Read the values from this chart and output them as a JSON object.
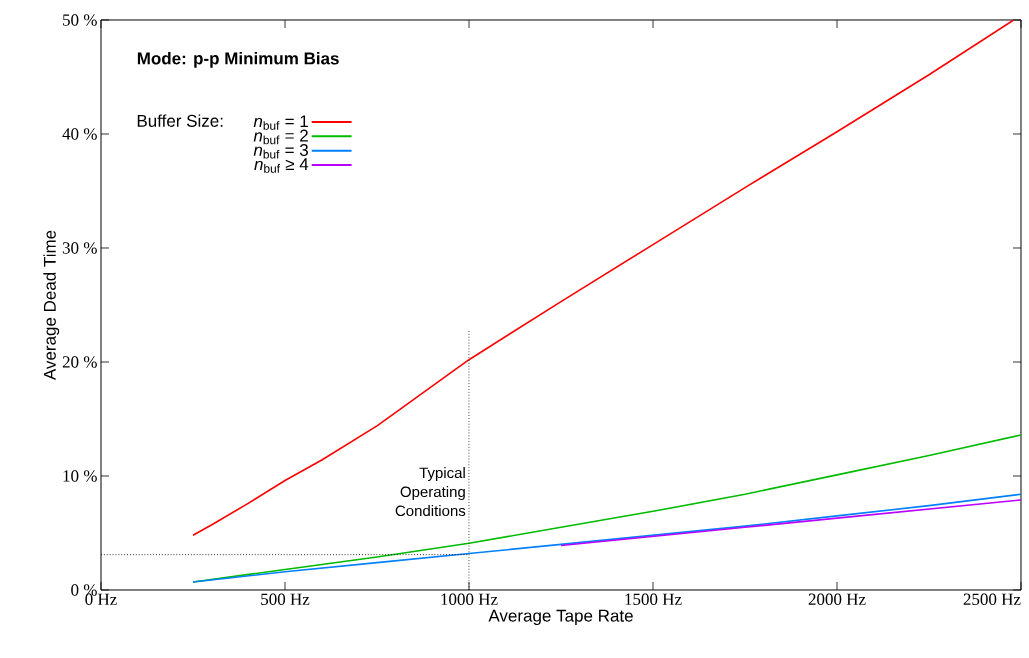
{
  "chart_data": {
    "type": "line",
    "title": "Mode: p-p Minimum Bias",
    "xlabel": "Average Tape Rate",
    "ylabel": "Average Dead Time",
    "legend_title": "Buffer Size:",
    "xlim": [
      0,
      2500
    ],
    "ylim": [
      0,
      50
    ],
    "xticks": [
      {
        "value": 0,
        "label": "0 Hz"
      },
      {
        "value": 500,
        "label": "500 Hz"
      },
      {
        "value": 1000,
        "label": "1000 Hz"
      },
      {
        "value": 1500,
        "label": "1500 Hz"
      },
      {
        "value": 2000,
        "label": "2000 Hz"
      },
      {
        "value": 2500,
        "label": "2500 Hz"
      }
    ],
    "yticks": [
      {
        "value": 0,
        "label": "0 %"
      },
      {
        "value": 10,
        "label": "10 %"
      },
      {
        "value": 20,
        "label": "20 %"
      },
      {
        "value": 30,
        "label": "30 %"
      },
      {
        "value": 40,
        "label": "40 %"
      },
      {
        "value": 50,
        "label": "50 %"
      }
    ],
    "x": [
      250,
      300,
      400,
      500,
      600,
      750,
      1000,
      1250,
      1500,
      1750,
      2000,
      2250,
      2480
    ],
    "series": [
      {
        "name": "*n*$_{buf}$ = 1",
        "color": "#ff0000",
        "values": [
          4.8,
          5.7,
          7.6,
          9.6,
          11.4,
          14.4,
          20.2,
          25.3,
          30.3,
          35.3,
          40.2,
          45.2,
          50
        ]
      },
      {
        "name": "*n*$_{buf}$ = 2",
        "color": "#00bb00",
        "x": [
          250,
          500,
          750,
          1000,
          1250,
          1500,
          1750,
          2000,
          2250,
          2500
        ],
        "values": [
          0.7,
          1.8,
          2.9,
          4.1,
          5.5,
          6.9,
          8.4,
          10.1,
          11.8,
          13.6
        ]
      },
      {
        "name": "*n*$_{buf}$ = 3",
        "color": "#0080ff",
        "x": [
          250,
          500,
          750,
          1000,
          1250,
          1500,
          1750,
          2000,
          2250,
          2500
        ],
        "values": [
          0.7,
          1.6,
          2.4,
          3.2,
          4.0,
          4.8,
          5.6,
          6.5,
          7.4,
          8.4
        ]
      },
      {
        "name": "*n*$_{buf}$ ≥ 4",
        "color": "#bb00ff",
        "x": [
          1250,
          1500,
          1750,
          2000,
          2250,
          2500
        ],
        "values": [
          3.9,
          4.7,
          5.5,
          6.3,
          7.1,
          7.9
        ]
      }
    ],
    "ref_lines": [
      {
        "axis": "x",
        "value": 1000,
        "label": "Typical Operating Conditions",
        "line_style": "dotted"
      },
      {
        "axis": "y",
        "value": 3.1,
        "line_style": "dotted"
      }
    ],
    "legend": "top left",
    "grid": false,
    "marker": "none",
    "line_style": "solid"
  }
}
